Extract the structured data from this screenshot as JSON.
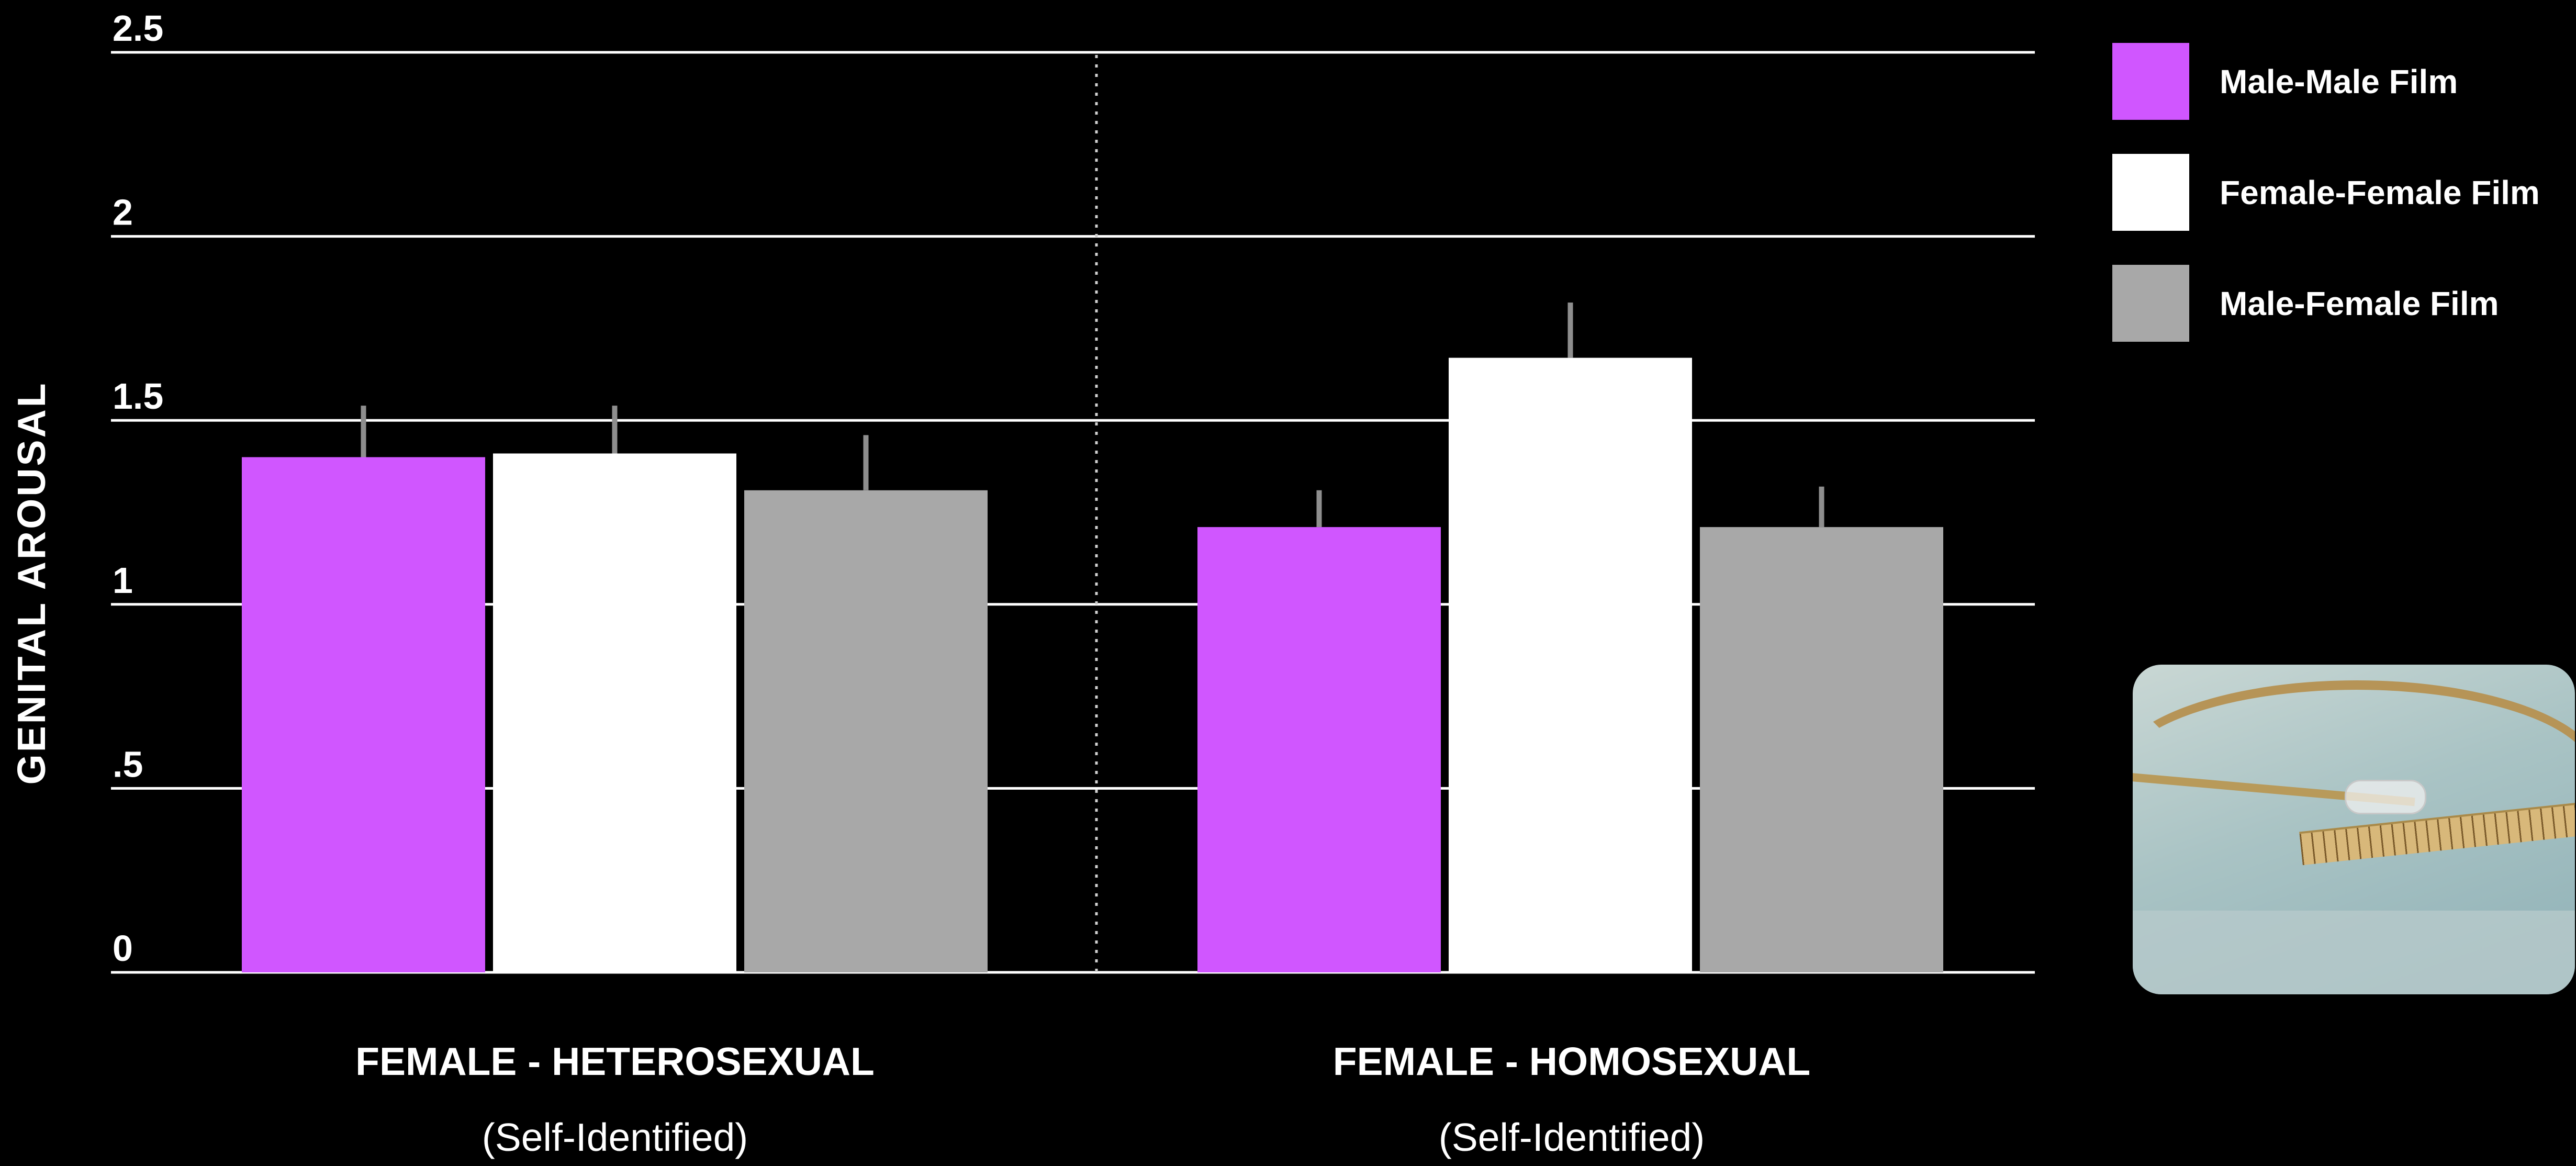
{
  "chart_data": {
    "type": "bar",
    "categories": [
      "FEMALE - HETEROSEXUAL",
      "FEMALE - HOMOSEXUAL"
    ],
    "category_sublabels": [
      "(Self-Identified)",
      "(Self-Identified)"
    ],
    "series": [
      {
        "name": "Male-Male Film",
        "color": "#d056ff",
        "values": [
          1.4,
          1.21
        ],
        "errors": [
          0.14,
          0.1
        ]
      },
      {
        "name": "Female-Female Film",
        "color": "#ffffff",
        "values": [
          1.41,
          1.67
        ],
        "errors": [
          0.13,
          0.15
        ]
      },
      {
        "name": "Male-Female Film",
        "color": "#a8a8a8",
        "values": [
          1.31,
          1.21
        ],
        "errors": [
          0.15,
          0.11
        ]
      }
    ],
    "error_bar_color": "#8e8e8e",
    "ylabel": "GENITAL AROUSAL",
    "ylim": [
      0,
      2.5
    ],
    "yticks": [
      {
        "value": 0,
        "label": "0"
      },
      {
        "value": 0.5,
        "label": ".5"
      },
      {
        "value": 1,
        "label": "1"
      },
      {
        "value": 1.5,
        "label": "1.5"
      },
      {
        "value": 2,
        "label": "2"
      },
      {
        "value": 2.5,
        "label": "2.5"
      }
    ],
    "grid": true,
    "legend_position": "top-right",
    "group_divider": "dotted"
  },
  "photo": {
    "icon": "measurement-probe-photo"
  }
}
